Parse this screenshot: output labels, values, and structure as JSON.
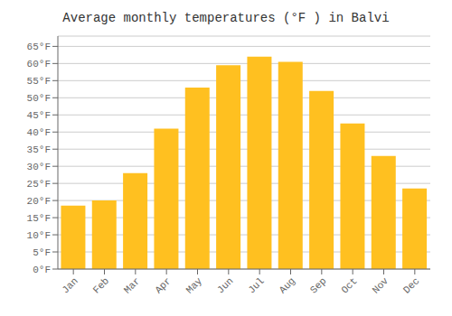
{
  "chart_data": {
    "type": "bar",
    "title": "Average monthly temperatures (°F ) in Balvi",
    "categories": [
      "Jan",
      "Feb",
      "Mar",
      "Apr",
      "May",
      "Jun",
      "Jul",
      "Aug",
      "Sep",
      "Oct",
      "Nov",
      "Dec"
    ],
    "values": [
      18.5,
      20.0,
      28.0,
      41.0,
      53.0,
      59.5,
      62.0,
      60.5,
      52.0,
      42.5,
      33.0,
      23.5
    ],
    "color": "#FFC020",
    "ylim": [
      0,
      68
    ],
    "yticks": [
      {
        "value": 0,
        "label": "0°F"
      },
      {
        "value": 5,
        "label": "5°F"
      },
      {
        "value": 10,
        "label": "10°F"
      },
      {
        "value": 15,
        "label": "15°F"
      },
      {
        "value": 20,
        "label": "20°F"
      },
      {
        "value": 25,
        "label": "25°F"
      },
      {
        "value": 30,
        "label": "30°F"
      },
      {
        "value": 35,
        "label": "35°F"
      },
      {
        "value": 40,
        "label": "40°F"
      },
      {
        "value": 45,
        "label": "45°F"
      },
      {
        "value": 50,
        "label": "50°F"
      },
      {
        "value": 55,
        "label": "55°F"
      },
      {
        "value": 60,
        "label": "60°F"
      },
      {
        "value": 65,
        "label": "65°F"
      }
    ],
    "grid": true
  }
}
